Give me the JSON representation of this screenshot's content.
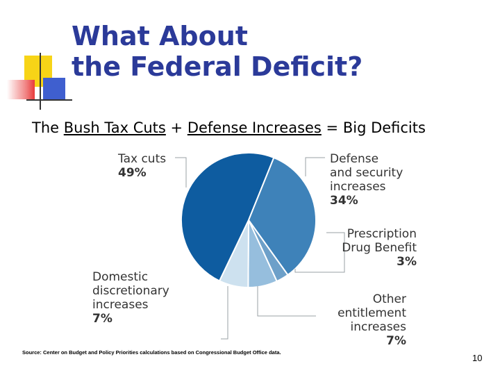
{
  "slide": {
    "title_line1": "What About",
    "title_line2": "the Federal Deficit?",
    "subtitle": {
      "prefix": "The ",
      "term1": "Bush Tax Cuts",
      "plus": " + ",
      "term2": "Defense Increases",
      "suffix": " = Big Deficits"
    },
    "source": "Source: Center on Budget and Policy Priorities calculations based on Congressional Budget Office data.",
    "page_number": "10"
  },
  "colors": {
    "title": "#2b3a99",
    "slice_tax": "#0e5ca0",
    "slice_defense": "#3e82b9",
    "slice_prescription": "#6da0c9",
    "slice_other": "#96bedd",
    "slice_domestic": "#cde1ef"
  },
  "chart_data": {
    "type": "pie",
    "slices": [
      {
        "name": "Tax cuts",
        "value": 49,
        "label_lines": [
          "Tax cuts"
        ],
        "pct_label": "49%"
      },
      {
        "name": "Defense and security increases",
        "value": 34,
        "label_lines": [
          "Defense",
          "and security",
          "increases"
        ],
        "pct_label": "34%"
      },
      {
        "name": "Prescription Drug Benefit",
        "value": 3,
        "label_lines": [
          "Prescription",
          "Drug Benefit"
        ],
        "pct_label": "3%"
      },
      {
        "name": "Other entitlement increases",
        "value": 7,
        "label_lines": [
          "Other",
          "entitlement",
          "increases"
        ],
        "pct_label": "7%"
      },
      {
        "name": "Domestic discretionary increases",
        "value": 7,
        "label_lines": [
          "Domestic",
          "discretionary",
          "increases"
        ],
        "pct_label": "7%"
      }
    ]
  }
}
